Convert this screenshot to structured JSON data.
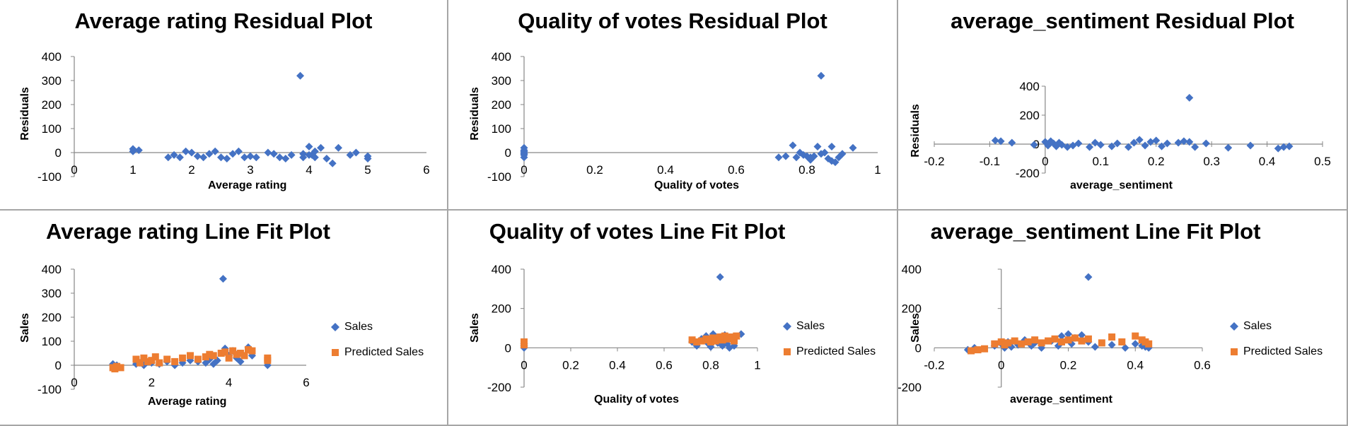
{
  "colors": {
    "sales": "#4472C4",
    "predicted": "#ED7D31",
    "axis": "#868686"
  },
  "chart_data": [
    {
      "type": "scatter",
      "title": "Average rating  Residual Plot",
      "xlabel": "Average rating",
      "ylabel": "Residuals",
      "xlim": [
        0,
        6
      ],
      "ylim": [
        -100,
        400
      ],
      "xticks": [
        0,
        1,
        2,
        3,
        4,
        5,
        6
      ],
      "yticks": [
        -100,
        0,
        100,
        200,
        300,
        400
      ],
      "series": [
        {
          "x": [
            1.0,
            1.0,
            1.1,
            1.6,
            1.7,
            1.8,
            1.9,
            2.0,
            2.1,
            2.2,
            2.3,
            2.4,
            2.5,
            2.6,
            2.7,
            2.8,
            3.0,
            3.1,
            3.4,
            3.5,
            3.6,
            3.7,
            3.9,
            3.9,
            4.0,
            4.0,
            4.1,
            4.1,
            4.2,
            4.3,
            4.4,
            4.5,
            4.7,
            4.8,
            5.0,
            5.0,
            3.85,
            4.05,
            2.9,
            3.3
          ],
          "y": [
            15,
            5,
            10,
            -20,
            -10,
            -20,
            5,
            0,
            -15,
            -20,
            -5,
            5,
            -20,
            -25,
            -5,
            5,
            -15,
            -20,
            -5,
            -20,
            -25,
            -10,
            -20,
            -5,
            25,
            -10,
            -20,
            5,
            20,
            -25,
            -45,
            20,
            -10,
            0,
            -15,
            -25,
            320,
            -10,
            -20,
            0
          ]
        }
      ]
    },
    {
      "type": "scatter",
      "title": "Quality of votes  Residual Plot",
      "xlabel": "Quality of votes",
      "ylabel": "Residuals",
      "xlim": [
        0,
        1
      ],
      "ylim": [
        -100,
        400
      ],
      "xticks": [
        0,
        0.2,
        0.4,
        0.6,
        0.8,
        1
      ],
      "yticks": [
        -100,
        0,
        100,
        200,
        300,
        400
      ],
      "series": [
        {
          "x": [
            0,
            0,
            0,
            0,
            0,
            0,
            0,
            0.72,
            0.74,
            0.76,
            0.77,
            0.79,
            0.8,
            0.81,
            0.82,
            0.83,
            0.84,
            0.85,
            0.86,
            0.87,
            0.87,
            0.88,
            0.89,
            0.9,
            0.93,
            0.81,
            0.78,
            0.84
          ],
          "y": [
            20,
            10,
            0,
            -10,
            -20,
            5,
            -5,
            -20,
            -15,
            30,
            -20,
            -10,
            -15,
            -20,
            -15,
            25,
            -5,
            0,
            -25,
            -35,
            25,
            -40,
            -20,
            -5,
            20,
            -30,
            0,
            320
          ]
        }
      ]
    },
    {
      "type": "scatter",
      "title": "average_sentiment  Residual Plot",
      "xlabel": "average_sentiment",
      "ylabel": "Residuals",
      "xlim": [
        -0.2,
        0.5
      ],
      "ylim": [
        -200,
        400
      ],
      "xticks": [
        -0.2,
        -0.1,
        0,
        0.1,
        0.2,
        0.3,
        0.4,
        0.5
      ],
      "yticks": [
        -200,
        0,
        200,
        400
      ],
      "series": [
        {
          "x": [
            -0.09,
            -0.08,
            -0.06,
            -0.02,
            0,
            0.005,
            0.01,
            0.015,
            0.02,
            0.025,
            0.03,
            0.04,
            0.05,
            0.06,
            0.08,
            0.09,
            0.1,
            0.12,
            0.13,
            0.15,
            0.16,
            0.17,
            0.18,
            0.19,
            0.2,
            0.21,
            0.22,
            0.24,
            0.25,
            0.26,
            0.27,
            0.29,
            0.33,
            0.37,
            0.42,
            0.43,
            0.44,
            0.26
          ],
          "y": [
            25,
            20,
            10,
            -5,
            15,
            -10,
            20,
            5,
            -15,
            10,
            -5,
            -20,
            -10,
            5,
            -20,
            10,
            -5,
            -15,
            5,
            -20,
            10,
            30,
            -10,
            15,
            25,
            -15,
            5,
            10,
            20,
            15,
            -20,
            5,
            -25,
            -10,
            -30,
            -20,
            -15,
            320
          ]
        }
      ]
    },
    {
      "type": "scatter",
      "title": "Average rating Line Fit  Plot",
      "xlabel": "Average rating",
      "ylabel": "Sales",
      "xlim": [
        0,
        6
      ],
      "ylim": [
        -100,
        400
      ],
      "xticks": [
        0,
        2,
        4,
        6
      ],
      "yticks": [
        -100,
        0,
        100,
        200,
        300,
        400
      ],
      "legend": "right",
      "series": [
        {
          "name": "Sales",
          "x": [
            1.0,
            1.1,
            1.6,
            1.7,
            1.8,
            2.0,
            2.2,
            2.4,
            2.6,
            2.8,
            3.0,
            3.2,
            3.4,
            3.5,
            3.6,
            3.7,
            3.9,
            4.0,
            4.1,
            4.2,
            4.3,
            4.5,
            4.6,
            5.0,
            3.85
          ],
          "y": [
            5,
            0,
            5,
            10,
            0,
            10,
            5,
            15,
            0,
            10,
            20,
            15,
            10,
            25,
            5,
            20,
            70,
            40,
            60,
            30,
            15,
            75,
            40,
            0,
            360
          ]
        },
        {
          "name": "Predicted Sales",
          "x": [
            1.0,
            1.05,
            1.1,
            1.2,
            1.6,
            1.7,
            1.8,
            1.9,
            2.0,
            2.1,
            2.2,
            2.4,
            2.6,
            2.8,
            3.0,
            3.2,
            3.4,
            3.5,
            3.6,
            3.8,
            3.9,
            4.0,
            4.1,
            4.2,
            4.3,
            4.4,
            4.5,
            4.6,
            5.0,
            5.0
          ],
          "y": [
            -10,
            -15,
            -5,
            -10,
            25,
            10,
            30,
            15,
            20,
            35,
            10,
            25,
            15,
            30,
            40,
            25,
            35,
            45,
            40,
            50,
            55,
            30,
            60,
            45,
            50,
            40,
            65,
            60,
            30,
            20
          ]
        }
      ]
    },
    {
      "type": "scatter",
      "title": "Quality of votes Line Fit  Plot",
      "xlabel": "Quality of votes",
      "ylabel": "Sales",
      "xlim": [
        0,
        1
      ],
      "ylim": [
        -200,
        400
      ],
      "xticks": [
        0,
        0.2,
        0.4,
        0.6,
        0.8,
        1
      ],
      "yticks": [
        -200,
        0,
        200,
        400
      ],
      "legend": "right",
      "series": [
        {
          "name": "Sales",
          "x": [
            0,
            0,
            0,
            0.72,
            0.74,
            0.76,
            0.78,
            0.79,
            0.8,
            0.81,
            0.82,
            0.83,
            0.84,
            0.85,
            0.86,
            0.87,
            0.88,
            0.89,
            0.9,
            0.93,
            0.84
          ],
          "y": [
            10,
            0,
            20,
            30,
            10,
            45,
            60,
            20,
            5,
            70,
            40,
            25,
            55,
            10,
            65,
            20,
            0,
            45,
            10,
            70,
            360
          ]
        },
        {
          "name": "Predicted Sales",
          "x": [
            0,
            0,
            0,
            0.72,
            0.74,
            0.76,
            0.78,
            0.79,
            0.8,
            0.81,
            0.82,
            0.83,
            0.84,
            0.85,
            0.86,
            0.87,
            0.88,
            0.89,
            0.9,
            0.91
          ],
          "y": [
            25,
            15,
            30,
            40,
            30,
            35,
            45,
            40,
            30,
            50,
            35,
            45,
            55,
            40,
            60,
            45,
            50,
            55,
            35,
            60
          ]
        }
      ]
    },
    {
      "type": "scatter",
      "title": "average_sentiment Line Fit  Plot",
      "xlabel": "average_sentiment",
      "ylabel": "Sales",
      "xlim": [
        -0.2,
        0.6
      ],
      "ylim": [
        -200,
        400
      ],
      "xticks": [
        -0.2,
        0,
        0.2,
        0.4,
        0.6
      ],
      "yticks": [
        -200,
        0,
        200,
        400
      ],
      "legend": "right",
      "series": [
        {
          "name": "Sales",
          "x": [
            -0.1,
            -0.08,
            -0.02,
            0,
            0.01,
            0.02,
            0.03,
            0.05,
            0.07,
            0.09,
            0.1,
            0.12,
            0.15,
            0.17,
            0.18,
            0.2,
            0.21,
            0.22,
            0.24,
            0.26,
            0.28,
            0.33,
            0.37,
            0.4,
            0.42,
            0.43,
            0.44,
            0.26
          ],
          "y": [
            -10,
            0,
            10,
            20,
            0,
            30,
            5,
            15,
            40,
            10,
            25,
            0,
            35,
            10,
            60,
            70,
            20,
            50,
            65,
            30,
            5,
            15,
            0,
            20,
            10,
            5,
            0,
            360
          ]
        },
        {
          "name": "Predicted Sales",
          "x": [
            -0.09,
            -0.07,
            -0.05,
            -0.02,
            0,
            0.01,
            0.02,
            0.04,
            0.06,
            0.08,
            0.1,
            0.12,
            0.14,
            0.16,
            0.18,
            0.2,
            0.22,
            0.24,
            0.26,
            0.3,
            0.33,
            0.36,
            0.4,
            0.42,
            0.43,
            0.44
          ],
          "y": [
            -15,
            -10,
            -5,
            20,
            30,
            15,
            25,
            35,
            20,
            30,
            40,
            25,
            35,
            45,
            30,
            40,
            50,
            35,
            45,
            25,
            55,
            30,
            60,
            40,
            30,
            20
          ]
        }
      ]
    }
  ]
}
